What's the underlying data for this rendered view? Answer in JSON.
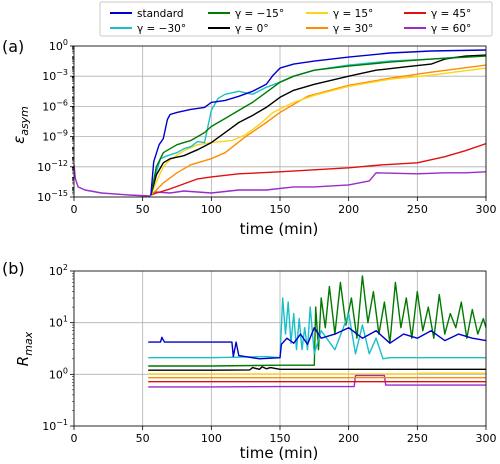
{
  "legend": {
    "items": [
      {
        "label": "standard",
        "color": "#0000cc"
      },
      {
        "label": "γ = −15°",
        "color": "#007a00"
      },
      {
        "label": "γ = 15°",
        "color": "#ffd21a"
      },
      {
        "label": "γ = 45°",
        "color": "#e01010"
      },
      {
        "label": "γ = −30°",
        "color": "#19c0c8"
      },
      {
        "label": "γ = 0°",
        "color": "#000000"
      },
      {
        "label": "γ = 30°",
        "color": "#ff8c00"
      },
      {
        "label": "γ = 60°",
        "color": "#9a2cc9"
      }
    ]
  },
  "chart_data": [
    {
      "panel": "(a)",
      "type": "line",
      "xlabel": "time (min)",
      "ylabel": "ε",
      "ylabel_sub": "asym",
      "xlim": [
        0,
        300
      ],
      "ylim_exp": [
        -15,
        0
      ],
      "yscale": "log",
      "grid": true,
      "x_ticks": [
        "0",
        "50",
        "100",
        "150",
        "200",
        "250",
        "300"
      ],
      "y_ticks": [
        {
          "base": "10",
          "exp": "0",
          "e": 0
        },
        {
          "base": "10",
          "exp": "−3",
          "e": -3
        },
        {
          "base": "10",
          "exp": "−6",
          "e": -6
        },
        {
          "base": "10",
          "exp": "−9",
          "e": -9
        },
        {
          "base": "10",
          "exp": "−12",
          "e": -12
        },
        {
          "base": "10",
          "exp": "−15",
          "e": -15
        }
      ],
      "series": [
        {
          "name": "γ = 60°",
          "color": "#9a2cc9",
          "x": [
            0,
            1,
            3,
            8,
            20,
            40,
            55,
            60,
            70,
            80,
            100,
            120,
            140,
            160,
            175,
            200,
            215,
            220,
            250,
            270,
            285,
            300
          ],
          "log10_y": [
            -11.8,
            -13.2,
            -14.0,
            -14.3,
            -14.6,
            -14.8,
            -14.9,
            -14.5,
            -14.6,
            -14.4,
            -14.6,
            -14.3,
            -14.3,
            -14.0,
            -14.0,
            -13.8,
            -13.4,
            -12.6,
            -12.7,
            -12.6,
            -12.6,
            -12.5
          ]
        },
        {
          "name": "γ = 45°",
          "color": "#e01010",
          "x": [
            56,
            60,
            65,
            70,
            80,
            90,
            100,
            120,
            150,
            175,
            200,
            225,
            250,
            270,
            285,
            300
          ],
          "log10_y": [
            -14.8,
            -14.6,
            -14.4,
            -14.2,
            -13.7,
            -13.2,
            -13.0,
            -12.7,
            -12.5,
            -12.3,
            -12.1,
            -11.8,
            -11.6,
            -11.0,
            -10.4,
            -9.7
          ]
        },
        {
          "name": "γ = 30°",
          "color": "#ff8c00",
          "x": [
            56,
            60,
            65,
            75,
            85,
            100,
            110,
            125,
            140,
            150,
            170,
            200,
            230,
            260,
            300
          ],
          "log10_y": [
            -14.8,
            -14.3,
            -13.6,
            -12.6,
            -11.8,
            -11.2,
            -10.6,
            -9.0,
            -7.6,
            -6.6,
            -5.0,
            -3.9,
            -3.2,
            -2.6,
            -1.9
          ]
        },
        {
          "name": "γ = 15°",
          "color": "#ffd21a",
          "x": [
            56,
            60,
            65,
            70,
            80,
            90,
            100,
            115,
            125,
            135,
            145,
            160,
            175,
            200,
            230,
            260,
            300
          ],
          "log10_y": [
            -14.8,
            -13.5,
            -12.0,
            -11.3,
            -10.4,
            -9.8,
            -9.6,
            -9.4,
            -8.8,
            -7.8,
            -6.6,
            -5.6,
            -4.9,
            -4.0,
            -3.3,
            -2.9,
            -2.2
          ]
        },
        {
          "name": "γ = −30°",
          "color": "#19c0c8",
          "x": [
            56,
            60,
            63,
            68,
            75,
            80,
            85,
            90,
            95,
            100,
            105,
            110,
            120,
            130,
            140,
            150,
            160,
            175,
            200,
            230,
            260,
            300
          ],
          "log10_y": [
            -14.8,
            -12.5,
            -11.2,
            -10.9,
            -10.6,
            -10.2,
            -10.0,
            -9.5,
            -9.6,
            -6.4,
            -5.2,
            -4.8,
            -4.5,
            -4.8,
            -4.1,
            -3.6,
            -3.0,
            -2.4,
            -1.9,
            -1.5,
            -1.3,
            -0.9
          ]
        },
        {
          "name": "γ = 0°",
          "color": "#000000",
          "x": [
            56,
            60,
            65,
            70,
            80,
            90,
            100,
            110,
            120,
            130,
            140,
            150,
            160,
            175,
            200,
            220,
            240,
            260,
            270,
            285,
            300
          ],
          "log10_y": [
            -14.8,
            -12.8,
            -11.6,
            -11.2,
            -10.9,
            -10.3,
            -9.6,
            -8.6,
            -7.6,
            -6.9,
            -6.1,
            -5.1,
            -4.4,
            -3.8,
            -3.0,
            -2.4,
            -2.1,
            -1.8,
            -1.3,
            -1.0,
            -0.9
          ]
        },
        {
          "name": "γ = −15°",
          "color": "#007a00",
          "x": [
            56,
            60,
            65,
            70,
            75,
            80,
            85,
            90,
            95,
            100,
            110,
            120,
            130,
            140,
            150,
            160,
            175,
            200,
            230,
            260,
            300
          ],
          "log10_y": [
            -14.8,
            -12.0,
            -10.6,
            -10.2,
            -9.8,
            -9.6,
            -9.4,
            -9.0,
            -8.6,
            -8.0,
            -7.2,
            -6.4,
            -5.6,
            -4.6,
            -3.6,
            -3.0,
            -2.4,
            -2.0,
            -1.6,
            -1.3,
            -1.0
          ]
        },
        {
          "name": "standard",
          "color": "#0000cc",
          "x": [
            56,
            58,
            62,
            65,
            68,
            70,
            75,
            85,
            95,
            100,
            110,
            120,
            130,
            140,
            145,
            150,
            160,
            175,
            200,
            230,
            260,
            300
          ],
          "log10_y": [
            -14.8,
            -11.5,
            -9.8,
            -9.2,
            -7.3,
            -6.8,
            -6.6,
            -6.3,
            -6.1,
            -5.6,
            -5.4,
            -5.0,
            -4.5,
            -3.8,
            -2.9,
            -2.2,
            -1.8,
            -1.5,
            -1.1,
            -0.7,
            -0.5,
            -0.4
          ]
        }
      ]
    },
    {
      "panel": "(b)",
      "type": "line",
      "xlabel": "time (min)",
      "ylabel": "R",
      "ylabel_sub": "max",
      "xlim": [
        0,
        300
      ],
      "ylim_exp": [
        -1,
        2
      ],
      "yscale": "log",
      "grid": true,
      "x_ticks": [
        "0",
        "50",
        "100",
        "150",
        "200",
        "250",
        "300"
      ],
      "y_ticks": [
        {
          "base": "10",
          "exp": "2",
          "e": 2
        },
        {
          "base": "10",
          "exp": "1",
          "e": 1
        },
        {
          "base": "10",
          "exp": "0",
          "e": 0
        },
        {
          "base": "10",
          "exp": "−1",
          "e": -1
        }
      ],
      "series": [
        {
          "name": "γ = 60°",
          "color": "#9a2cc9",
          "x": [
            54,
            100,
            150,
            204,
            205,
            226,
            227,
            300
          ],
          "y": [
            0.57,
            0.57,
            0.58,
            0.58,
            0.95,
            0.95,
            0.62,
            0.62
          ]
        },
        {
          "name": "γ = 45°",
          "color": "#e01010",
          "x": [
            54,
            300
          ],
          "y": [
            0.72,
            0.72
          ]
        },
        {
          "name": "γ = 30°",
          "color": "#ff8c00",
          "x": [
            54,
            300
          ],
          "y": [
            0.86,
            0.86
          ]
        },
        {
          "name": "γ = 15°",
          "color": "#ffd21a",
          "x": [
            54,
            250,
            252,
            300
          ],
          "y": [
            1.02,
            1.02,
            1.05,
            1.05
          ]
        },
        {
          "name": "γ = 0°",
          "color": "#000000",
          "x": [
            54,
            100,
            128,
            130,
            135,
            137,
            140,
            143,
            150,
            300
          ],
          "y": [
            1.2,
            1.2,
            1.22,
            1.35,
            1.25,
            1.4,
            1.28,
            1.35,
            1.25,
            1.25
          ]
        },
        {
          "name": "γ = −15°",
          "color": "#007a00",
          "x": [
            54,
            100,
            150,
            175,
            176,
            178,
            180,
            183,
            186,
            190,
            194,
            198,
            202,
            206,
            210,
            214,
            218,
            222,
            226,
            230,
            234,
            238,
            242,
            246,
            250,
            254,
            258,
            262,
            266,
            270,
            274,
            278,
            282,
            286,
            290,
            294,
            298,
            300
          ],
          "y": [
            1.45,
            1.45,
            1.5,
            1.5,
            20,
            3,
            30,
            8,
            50,
            6,
            60,
            9,
            30,
            5,
            80,
            10,
            40,
            6,
            25,
            4,
            60,
            8,
            30,
            5,
            40,
            7,
            20,
            5,
            35,
            6,
            15,
            8,
            25,
            5,
            18,
            6,
            12,
            8
          ]
        },
        {
          "name": "γ = −30°",
          "color": "#19c0c8",
          "x": [
            54,
            100,
            140,
            150,
            152,
            154,
            156,
            158,
            160,
            162,
            164,
            166,
            168,
            170,
            172,
            175,
            180,
            190,
            200,
            205,
            210,
            215,
            220,
            225,
            230,
            240,
            300
          ],
          "y": [
            2.1,
            2.1,
            2.2,
            2.1,
            30,
            6,
            25,
            4,
            15,
            3,
            12,
            3,
            8,
            3,
            20,
            2.5,
            7,
            3,
            15,
            2.5,
            9,
            2.5,
            5,
            2,
            2.1,
            2.1,
            2.1
          ]
        },
        {
          "name": "standard",
          "color": "#0000cc",
          "x": [
            54,
            63,
            64,
            65,
            66,
            115,
            116,
            118,
            120,
            135,
            150,
            151,
            155,
            160,
            165,
            170,
            175,
            180,
            190,
            200,
            210,
            220,
            230,
            240,
            250,
            260,
            270,
            280,
            290,
            300
          ],
          "y": [
            4.2,
            4.2,
            5.2,
            4.6,
            4.2,
            4.2,
            2.2,
            4.2,
            2.3,
            2.0,
            2.1,
            3.8,
            5.0,
            4.0,
            6.0,
            3.8,
            8.0,
            5.0,
            6.0,
            8.0,
            5.0,
            7.0,
            4.0,
            6.0,
            5.0,
            7.0,
            4.5,
            6.0,
            5.0,
            4.5
          ]
        }
      ]
    }
  ]
}
